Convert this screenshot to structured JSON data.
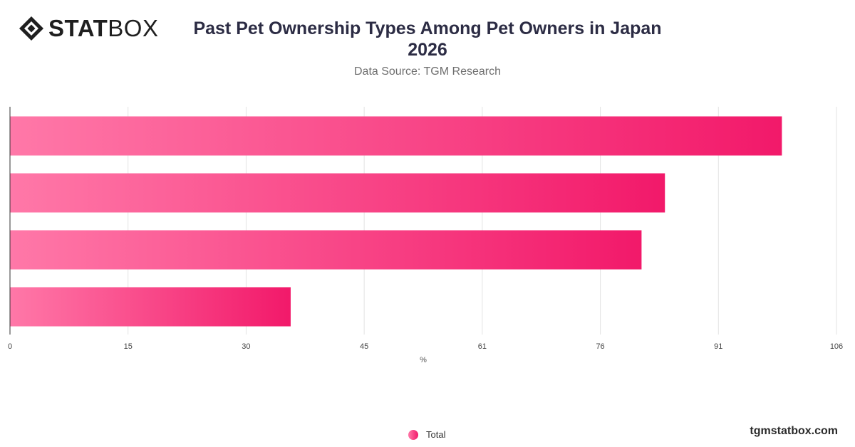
{
  "brand": {
    "bold": "STAT",
    "light": "BOX"
  },
  "title_line1": "Past Pet Ownership Types Among Pet Owners in Japan",
  "title_line2": "2026",
  "subtitle": "Data Source: TGM Research",
  "footer": "tgmstatbox.com",
  "colors": {
    "bar_start": "#ff78a8",
    "bar_end": "#f2196a",
    "grid": "#e3e3e3",
    "axis": "#333333"
  },
  "chart_data": {
    "type": "bar",
    "orientation": "horizontal",
    "categories": [
      "",
      "",
      "",
      ""
    ],
    "series": [
      {
        "name": "Total",
        "values": [
          99,
          84,
          81,
          36
        ]
      }
    ],
    "xlabel": "%",
    "xlim": [
      0,
      106
    ],
    "xticks": [
      "0",
      "15",
      "30",
      "45",
      "61",
      "76",
      "91",
      "106"
    ],
    "grid": true,
    "legend_position": "bottom"
  }
}
